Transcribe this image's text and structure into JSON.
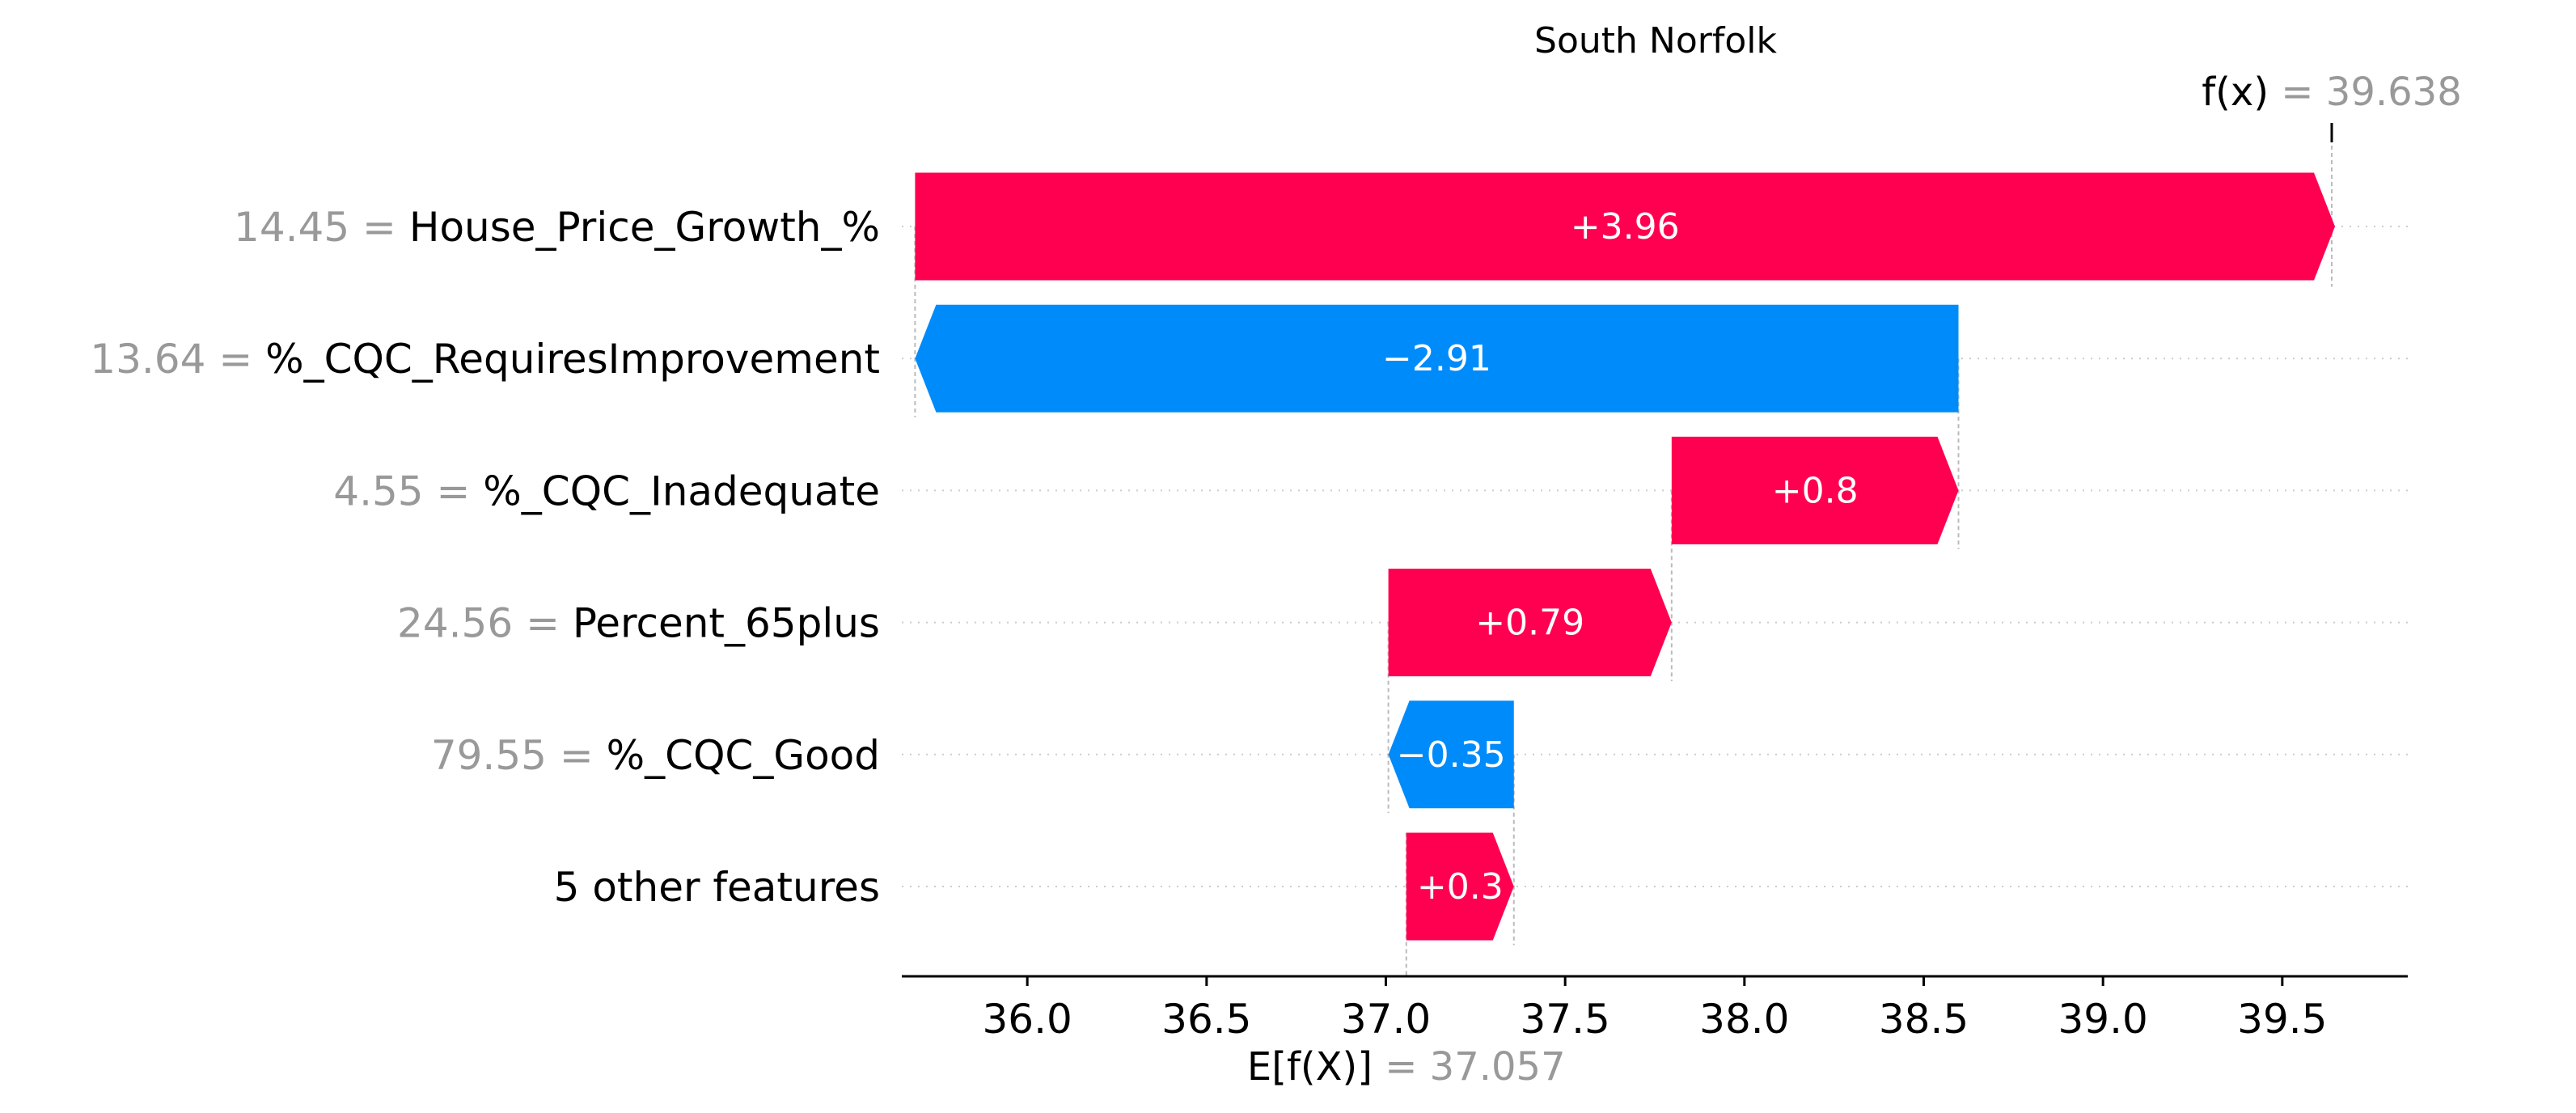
{
  "chart_data": {
    "type": "waterfall",
    "title": "South Norfolk",
    "base_value": 37.057,
    "output_value": 39.638,
    "base_label": "E[f(X)]",
    "base_value_text": "= 37.057",
    "output_label": "f(x)",
    "output_value_text": "= 39.638",
    "xlim": [
      35.65,
      39.85
    ],
    "x_ticks": [
      36.0,
      36.5,
      37.0,
      37.5,
      38.0,
      38.5,
      39.0,
      39.5
    ],
    "x_tick_labels": [
      "36.0",
      "36.5",
      "37.0",
      "37.5",
      "38.0",
      "38.5",
      "39.0",
      "39.5"
    ],
    "features": [
      {
        "value": "14.45",
        "name": "House_Price_Growth_%",
        "contribution": 3.96,
        "label": "+3.96"
      },
      {
        "value": "13.64",
        "name": "%_CQC_RequiresImprovement",
        "contribution": -2.91,
        "label": "−2.91"
      },
      {
        "value": "4.55",
        "name": "%_CQC_Inadequate",
        "contribution": 0.8,
        "label": "+0.8"
      },
      {
        "value": "24.56",
        "name": "Percent_65plus",
        "contribution": 0.79,
        "label": "+0.79"
      },
      {
        "value": "79.55",
        "name": "%_CQC_Good",
        "contribution": -0.35,
        "label": "−0.35"
      },
      {
        "value": "",
        "name": "5 other features",
        "contribution": 0.3,
        "label": "+0.3"
      }
    ],
    "colors": {
      "positive": "#ff0051",
      "negative": "#008bfb",
      "grid": "#cccccc",
      "muted": "#999999"
    }
  }
}
